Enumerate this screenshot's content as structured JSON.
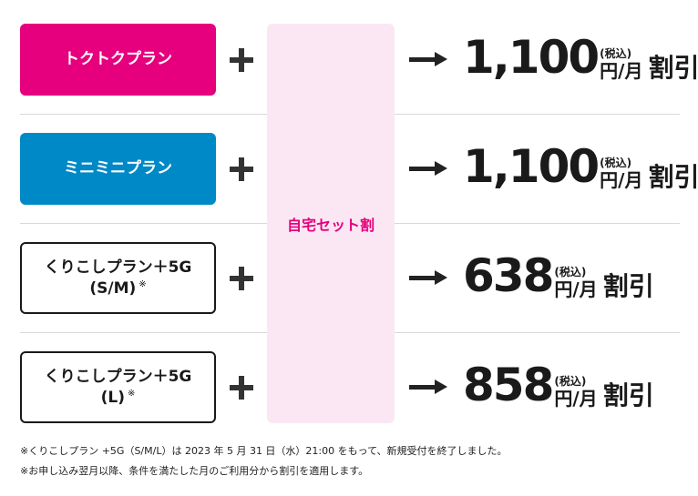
{
  "colors": {
    "pink": "#e6007e",
    "blue": "#0089c7",
    "discount_bg": "#fbe7f3"
  },
  "discount_label": "自宅セット割",
  "rows": [
    {
      "plan": "トクトクプラン",
      "plan_line2": "",
      "note": "",
      "amount": "1,100",
      "tax": "(税込)",
      "unit": "円/月",
      "wari": "割引"
    },
    {
      "plan": "ミニミニプラン",
      "plan_line2": "",
      "note": "",
      "amount": "1,100",
      "tax": "(税込)",
      "unit": "円/月",
      "wari": "割引"
    },
    {
      "plan": "くりこしプラン＋5G",
      "plan_line2": "(S/M)",
      "note": "※",
      "amount": "638",
      "tax": "(税込)",
      "unit": "円/月",
      "wari": "割引"
    },
    {
      "plan": "くりこしプラン＋5G",
      "plan_line2": "(L)",
      "note": "※",
      "amount": "858",
      "tax": "(税込)",
      "unit": "円/月",
      "wari": "割引"
    }
  ],
  "footnotes": [
    "※くりこしプラン +5G（S/M/L）は 2023 年 5 月 31 日（水）21:00 をもって、新規受付を終了しました。",
    "※お申し込み翌月以降、条件を満たした月のご利用分から割引を適用します。"
  ]
}
